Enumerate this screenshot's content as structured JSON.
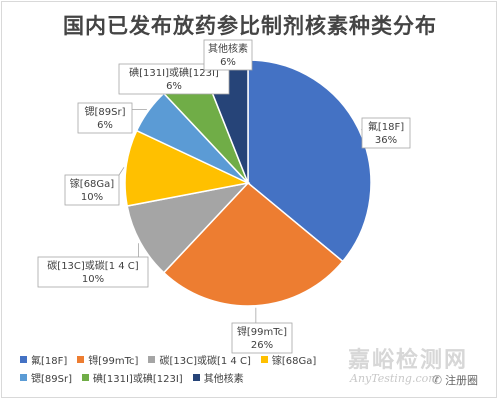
{
  "chart_data": {
    "type": "pie",
    "title": "国内已发布放药参比制剂核素种类分布",
    "slices": [
      {
        "name": "氟[18F]",
        "value": 36,
        "label": "36%",
        "color": "#4472C4"
      },
      {
        "name": "锝[99mTc]",
        "value": 26,
        "label": "26%",
        "color": "#ED7D31"
      },
      {
        "name": "碳[13C]或碳[1 4 C]",
        "value": 10,
        "label": "10%",
        "color": "#A5A5A5"
      },
      {
        "name": "镓[68Ga]",
        "value": 10,
        "label": "10%",
        "color": "#FFC000"
      },
      {
        "name": "锶[89Sr]",
        "value": 6,
        "label": "6%",
        "color": "#5B9BD5"
      },
      {
        "name": "碘[131I]或碘[123I]",
        "value": 6,
        "label": "6%",
        "color": "#70AD47"
      },
      {
        "name": "其他核素",
        "value": 6,
        "label": "6%",
        "color": "#264478"
      }
    ],
    "legend": "bottom"
  },
  "watermark": {
    "main": "嘉峪检测网",
    "sub": "AnyTesting.com",
    "badge": "注册圈",
    "badge_icon": "wechat-icon"
  }
}
